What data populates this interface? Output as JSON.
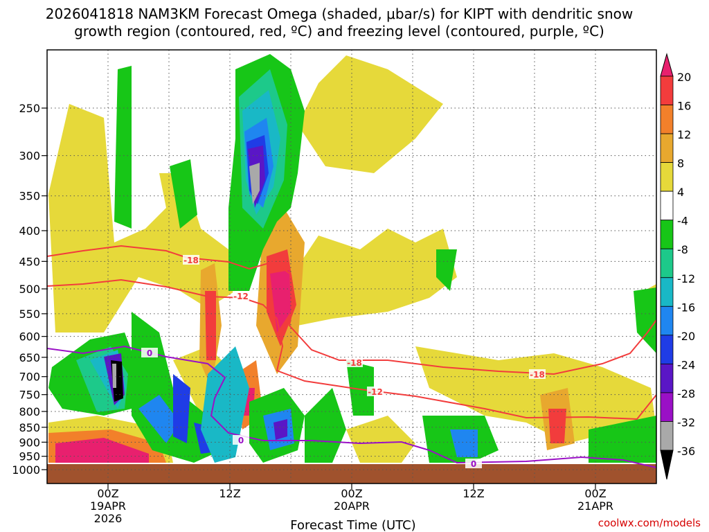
{
  "title": {
    "line1": "2026041818 NAM3KM Forecast Omega (shaded, μbar/s) for KIPT with dendritic snow",
    "line2": "growth region (contoured, red, ºC) and freezing level (contoured, purple, ºC)"
  },
  "chart_data": {
    "type": "heatmap",
    "xlabel": "Forecast Time (UTC)",
    "ylabel": "",
    "y_axis": {
      "scale": "log-pressure",
      "reversed": true,
      "range": [
        200,
        1000
      ],
      "units": "hPa",
      "ticks": [
        250,
        300,
        350,
        400,
        450,
        500,
        550,
        600,
        650,
        700,
        750,
        800,
        850,
        900,
        950,
        1000
      ]
    },
    "x_axis": {
      "range_hours": [
        -6,
        54
      ],
      "ticks": [
        {
          "hour": 0,
          "label": "00Z",
          "sub1": "19APR",
          "sub2": "2026"
        },
        {
          "hour": 12,
          "label": "12Z",
          "sub1": "",
          "sub2": ""
        },
        {
          "hour": 24,
          "label": "00Z",
          "sub1": "20APR",
          "sub2": ""
        },
        {
          "hour": 36,
          "label": "12Z",
          "sub1": "",
          "sub2": ""
        },
        {
          "hour": 48,
          "label": "00Z",
          "sub1": "21APR",
          "sub2": ""
        }
      ],
      "dotted_gridlines_hours": [
        0,
        6,
        12,
        18,
        24,
        30,
        36,
        42,
        48
      ]
    },
    "grid": true,
    "colorbar": {
      "labels": [
        "20",
        "16",
        "12",
        "8",
        "4",
        "-4",
        "-8",
        "-12",
        "-16",
        "-20",
        "-24",
        "-28",
        "-32",
        "-36"
      ],
      "colors": [
        "#e8206e",
        "#f23c3c",
        "#f2802a",
        "#e8a82e",
        "#e6d93a",
        "#ffffff",
        "#17c617",
        "#1dc98a",
        "#19b8c6",
        "#1f86f0",
        "#1f3ce6",
        "#5a16c6",
        "#9a10c6",
        "#a9a9a9",
        "#000000"
      ]
    },
    "contours": [
      {
        "name": "dendritic growth region",
        "color": "#f23c3c",
        "levels": [
          "-18",
          "-12"
        ]
      },
      {
        "name": "freezing level",
        "color": "#9a10c6",
        "levels": [
          "0"
        ]
      }
    ],
    "contour_labels": [
      {
        "text": "-18",
        "color": "#f23c3c"
      },
      {
        "text": "-12",
        "color": "#f23c3c"
      },
      {
        "text": "-18",
        "color": "#f23c3c"
      },
      {
        "text": "-12",
        "color": "#f23c3c"
      },
      {
        "text": "-18",
        "color": "#f23c3c"
      },
      {
        "text": "0",
        "color": "#9a10c6"
      },
      {
        "text": "0",
        "color": "#9a10c6"
      },
      {
        "text": "0",
        "color": "#9a10c6"
      }
    ]
  },
  "credit": "coolwx.com/models"
}
